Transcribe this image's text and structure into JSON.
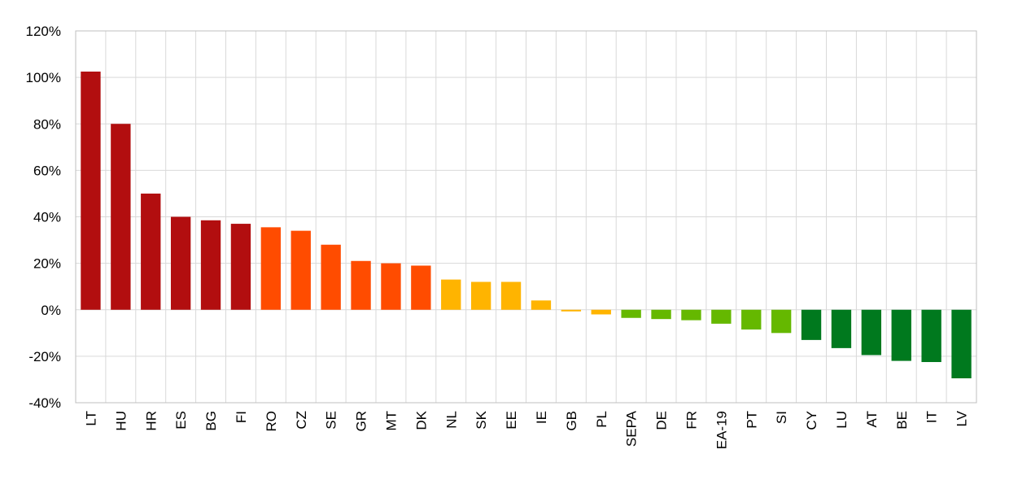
{
  "chart_data": {
    "type": "bar",
    "title": "",
    "xlabel": "",
    "ylabel": "",
    "ylim": [
      -40,
      120
    ],
    "y_ticks": [
      -40,
      -20,
      0,
      20,
      40,
      60,
      80,
      100,
      120
    ],
    "y_tick_labels": [
      "-40%",
      "-20%",
      "0%",
      "20%",
      "40%",
      "60%",
      "80%",
      "100%",
      "120%"
    ],
    "grid": true,
    "legend": "none",
    "categories": [
      "LT",
      "HU",
      "HR",
      "ES",
      "BG",
      "FI",
      "RO",
      "CZ",
      "SE",
      "GR",
      "MT",
      "DK",
      "NL",
      "SK",
      "EE",
      "IE",
      "GB",
      "PL",
      "SEPA",
      "DE",
      "FR",
      "EA-19",
      "PT",
      "SI",
      "CY",
      "LU",
      "AT",
      "BE",
      "IT",
      "LV"
    ],
    "values": [
      102.5,
      80,
      50,
      40,
      38.5,
      37,
      35.5,
      34,
      28,
      21,
      20,
      19,
      13,
      12,
      12,
      4,
      -0.7,
      -2,
      -3.5,
      -4,
      -4.5,
      -6,
      -8.5,
      -10,
      -13,
      -16.5,
      -19.5,
      -22,
      -22.5,
      -29.5
    ],
    "color_groups": [
      "dark-red",
      "dark-red",
      "dark-red",
      "dark-red",
      "dark-red",
      "dark-red",
      "orange-red",
      "orange-red",
      "orange-red",
      "orange-red",
      "orange-red",
      "orange-red",
      "amber",
      "amber",
      "amber",
      "amber",
      "amber",
      "amber",
      "light-green",
      "light-green",
      "light-green",
      "light-green",
      "light-green",
      "light-green",
      "dark-green",
      "dark-green",
      "dark-green",
      "dark-green",
      "dark-green",
      "dark-green"
    ],
    "colors": {
      "dark-red": "#B20E0F",
      "orange-red": "#FF4C00",
      "amber": "#FFB400",
      "light-green": "#65B800",
      "dark-green": "#00791E"
    },
    "grid_color": "#d9d9d9",
    "axis_color": "#bfbfbf"
  }
}
